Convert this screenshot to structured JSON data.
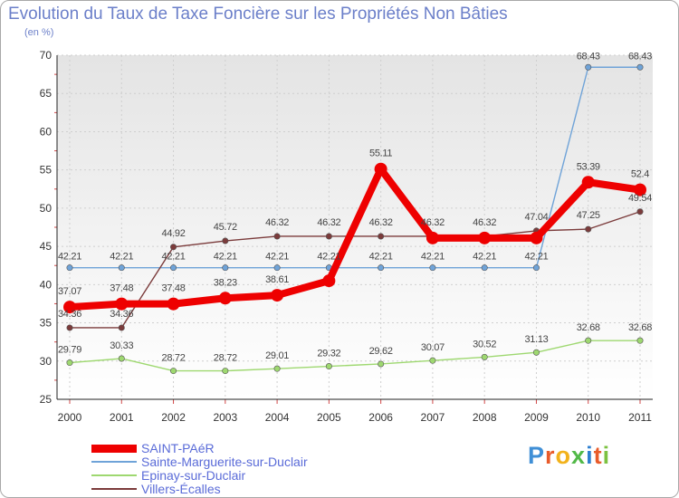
{
  "chart_data": {
    "type": "line",
    "title": "Evolution du Taux de Taxe Foncière sur les Propriétés Non Bâties",
    "ylabel": "(en %)",
    "xlabel": "",
    "x": [
      "2000",
      "2001",
      "2002",
      "2003",
      "2004",
      "2005",
      "2006",
      "2007",
      "2008",
      "2009",
      "2010",
      "2011"
    ],
    "ylim": [
      25,
      70
    ],
    "yticks": [
      "25",
      "30",
      "35",
      "40",
      "45",
      "50",
      "55",
      "60",
      "65",
      "70"
    ],
    "grid": true,
    "series": [
      {
        "name": "SAINT-PAéR",
        "color": "#ee0000",
        "values": [
          37.07,
          37.48,
          37.48,
          38.23,
          38.61,
          40.5,
          55.11,
          46.1,
          46.1,
          46.1,
          53.39,
          52.4
        ],
        "labels": [
          "37.07",
          "37.48",
          "37.48",
          "38.23",
          "38.61",
          "",
          "55.11",
          "",
          "",
          "",
          "53.39",
          "52.4"
        ]
      },
      {
        "name": "Sainte-Marguerite-sur-Duclair",
        "color": "#6fa3d8",
        "values": [
          42.21,
          42.21,
          42.21,
          42.21,
          42.21,
          42.21,
          42.21,
          42.21,
          42.21,
          42.21,
          68.43,
          68.43
        ],
        "labels": [
          "42.21",
          "42.21",
          "42.21",
          "42.21",
          "42.21",
          "42.21",
          "42.21",
          "42.21",
          "42.21",
          "42.21",
          "68.43",
          "68.43"
        ]
      },
      {
        "name": "Epinay-sur-Duclair",
        "color": "#9ed870",
        "values": [
          29.79,
          30.33,
          28.72,
          28.72,
          29.01,
          29.32,
          29.62,
          30.07,
          30.52,
          31.13,
          32.68,
          32.68
        ],
        "labels": [
          "29.79",
          "30.33",
          "28.72",
          "28.72",
          "29.01",
          "29.32",
          "29.62",
          "30.07",
          "30.52",
          "31.13",
          "32.68",
          "32.68"
        ]
      },
      {
        "name": "Villers-Écalles",
        "color": "#7b3b3b",
        "values": [
          34.36,
          34.36,
          44.92,
          45.72,
          46.32,
          46.32,
          46.32,
          46.32,
          46.32,
          47.04,
          47.25,
          49.54
        ],
        "labels": [
          "34.36",
          "34.36",
          "44.92",
          "45.72",
          "46.32",
          "46.32",
          "46.32",
          "46.32",
          "46.32",
          "47.04",
          "47.25",
          "49.54"
        ]
      }
    ],
    "legend": "bottom-left"
  },
  "logo": {
    "letters": [
      "P",
      "r",
      "o",
      "x",
      "i",
      "t",
      "i"
    ],
    "colors": [
      "#3f8fd6",
      "#e85b2a",
      "#f2b21b",
      "#52b948",
      "#2f7fd0",
      "#e85b2a",
      "#7cc241"
    ]
  }
}
